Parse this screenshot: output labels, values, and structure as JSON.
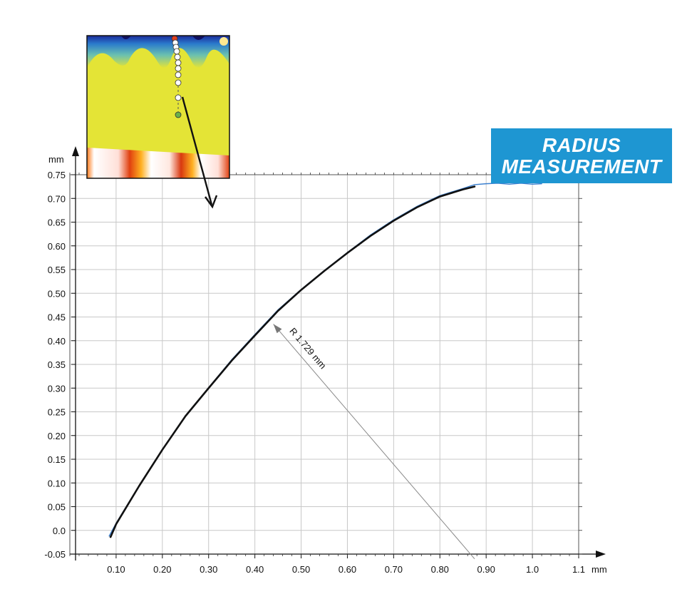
{
  "badge": {
    "line1": "RADIUS",
    "line2": "MEASUREMENT"
  },
  "colors": {
    "measured_profile": "#3a7fcf",
    "fitted_arc": "#111111",
    "grid": "#c8c8c8",
    "badge_bg": "#1e96d2"
  },
  "chart_data": {
    "type": "line",
    "title": "",
    "xlabel": "",
    "ylabel": "",
    "x_unit": "mm",
    "y_unit": "mm",
    "xlim": [
      0.0,
      1.1
    ],
    "ylim": [
      -0.05,
      0.75
    ],
    "x_ticks": [
      "0.10",
      "0.20",
      "0.30",
      "0.40",
      "0.50",
      "0.60",
      "0.70",
      "0.80",
      "0.90",
      "1.0",
      "1.1"
    ],
    "y_ticks": [
      "0.75",
      "0.70",
      "0.65",
      "0.60",
      "0.55",
      "0.50",
      "0.45",
      "0.40",
      "0.35",
      "0.30",
      "0.25",
      "0.20",
      "0.15",
      "0.10",
      "0.05",
      "0.0",
      "-0.05"
    ],
    "grid": true,
    "series": [
      {
        "x": [
          0.085,
          0.1,
          0.15,
          0.2,
          0.25,
          0.3,
          0.35,
          0.4,
          0.45,
          0.5,
          0.55,
          0.6,
          0.65,
          0.7,
          0.75,
          0.8,
          0.85,
          0.875,
          0.9,
          0.925,
          0.95,
          0.975,
          1.0,
          1.02
        ],
        "y": [
          -0.012,
          0.015,
          0.095,
          0.171,
          0.242,
          0.301,
          0.36,
          0.413,
          0.465,
          0.508,
          0.548,
          0.586,
          0.623,
          0.655,
          0.683,
          0.706,
          0.721,
          0.729,
          0.731,
          0.732,
          0.73,
          0.732,
          0.73,
          0.731
        ]
      },
      {
        "x": [
          0.088,
          0.1,
          0.15,
          0.2,
          0.25,
          0.3,
          0.35,
          0.4,
          0.45,
          0.5,
          0.55,
          0.6,
          0.65,
          0.7,
          0.75,
          0.8,
          0.85,
          0.875
        ],
        "y": [
          -0.014,
          0.013,
          0.094,
          0.17,
          0.241,
          0.3,
          0.358,
          0.411,
          0.463,
          0.507,
          0.547,
          0.585,
          0.621,
          0.653,
          0.681,
          0.704,
          0.719,
          0.725
        ]
      }
    ],
    "annotations": [
      {
        "text": "R 1.729 mm",
        "from": [
          0.875,
          -0.06
        ],
        "to": [
          0.44,
          0.435
        ]
      }
    ]
  }
}
